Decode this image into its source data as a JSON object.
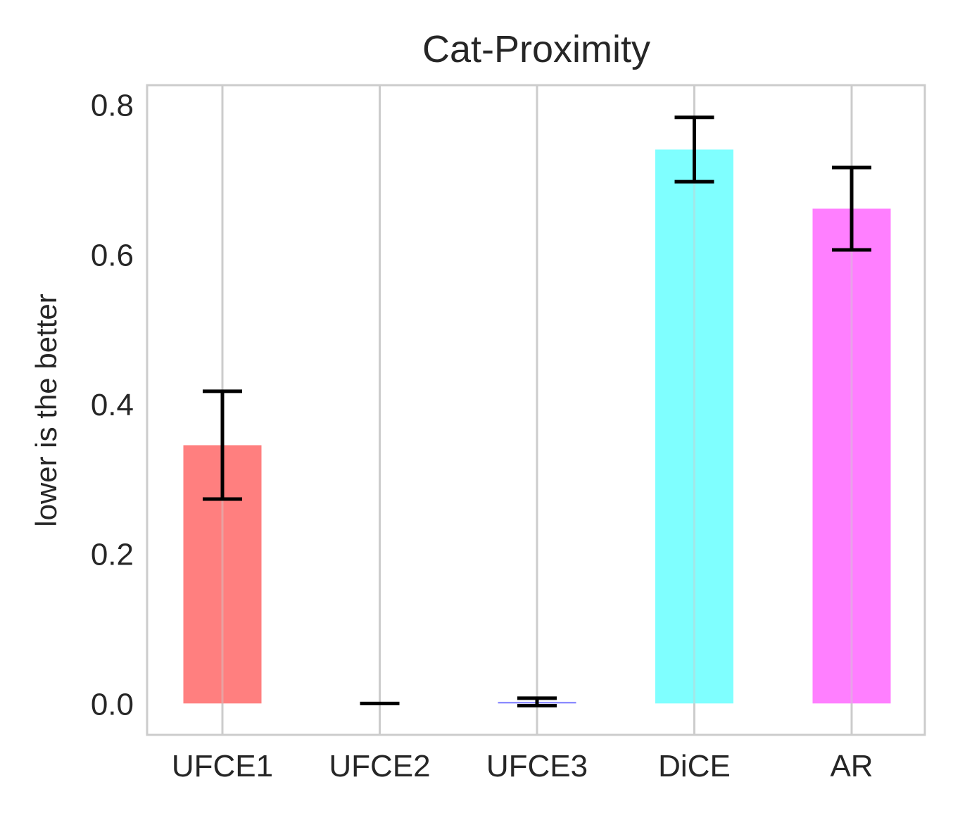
{
  "chart_data": {
    "type": "bar",
    "title": "Cat-Proximity",
    "xlabel": "",
    "ylabel": "lower is the better",
    "categories": [
      "UFCE1",
      "UFCE2",
      "UFCE3",
      "DiCE",
      "AR"
    ],
    "values": [
      0.345,
      0.0,
      0.002,
      0.74,
      0.661
    ],
    "errors": [
      0.072,
      0.0,
      0.005,
      0.043,
      0.055
    ],
    "colors": [
      "#ff7f7f",
      "#7f7fff",
      "#7f7fff",
      "#7fffff",
      "#ff7fff"
    ],
    "ylim": [
      -0.042,
      0.826
    ],
    "yticks": [
      0.0,
      0.2,
      0.4,
      0.6,
      0.8
    ],
    "ytick_labels": [
      "0.0",
      "0.2",
      "0.4",
      "0.6",
      "0.8"
    ],
    "grid": "vertical",
    "grid_color": "#cccccc",
    "errorbar_color": "#000000"
  }
}
